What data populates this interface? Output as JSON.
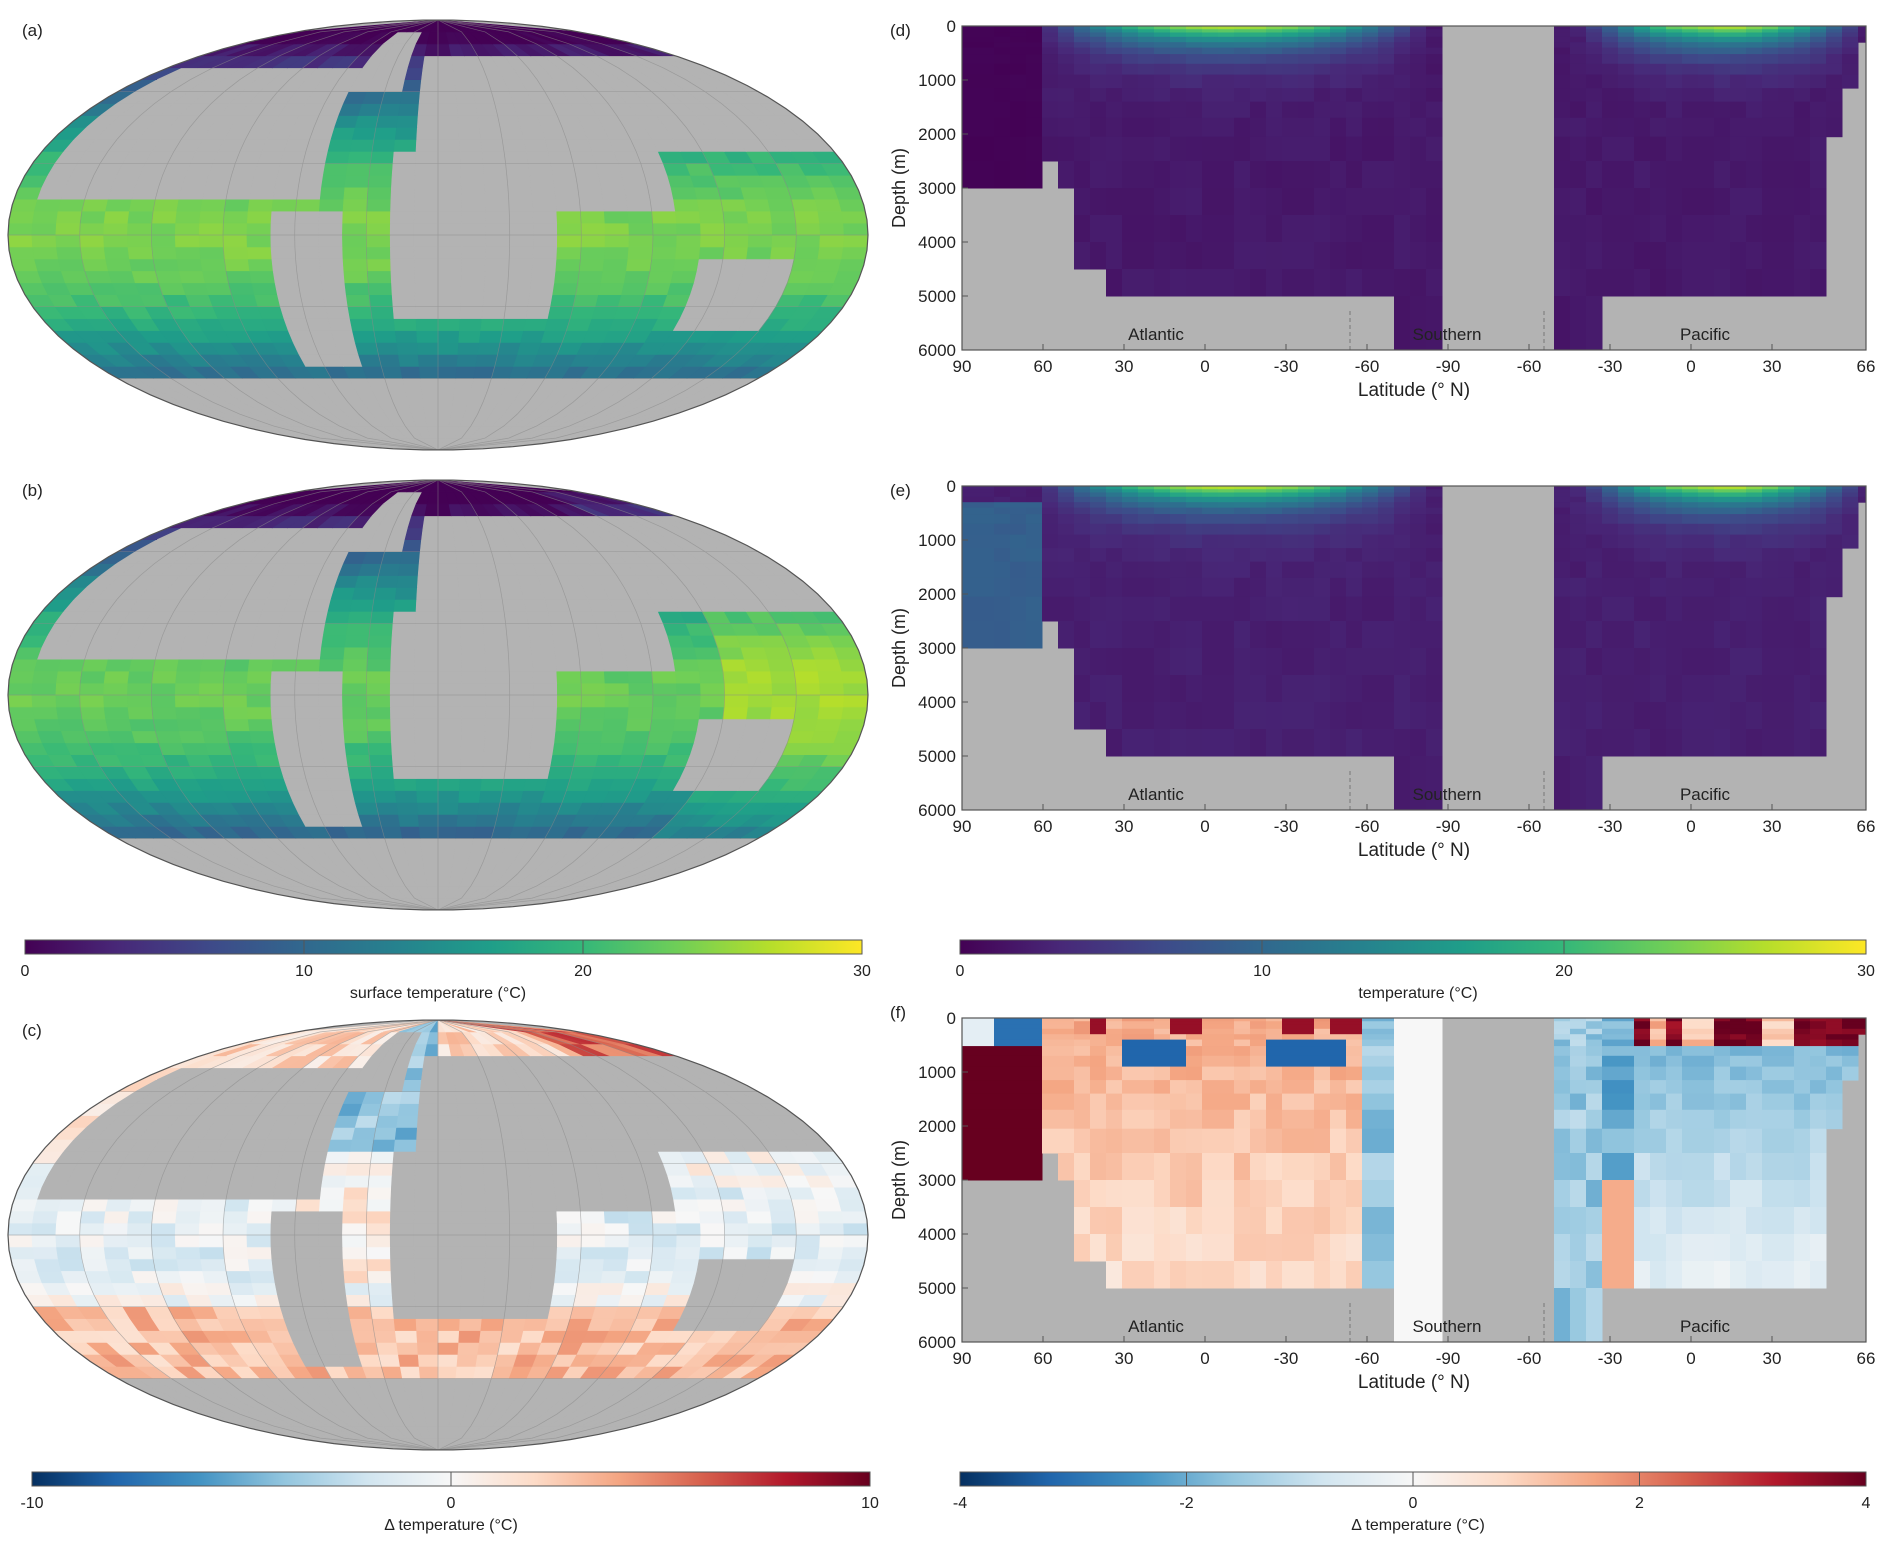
{
  "colors": {
    "land": "#b3b3b3",
    "frame": "#555555",
    "divider": "#777777",
    "viridis": [
      "#440154",
      "#482878",
      "#3e4a89",
      "#31688e",
      "#26828e",
      "#1f9e89",
      "#35b779",
      "#6ece58",
      "#b5de2b",
      "#fde725"
    ],
    "rdbu": [
      "#053061",
      "#2166ac",
      "#4393c3",
      "#92c5de",
      "#d1e5f0",
      "#f7f7f7",
      "#fddbc7",
      "#f4a582",
      "#d6604d",
      "#b2182b",
      "#67001f"
    ]
  },
  "panel_labels": {
    "a": "(a)",
    "b": "(b)",
    "c": "(c)",
    "d": "(d)",
    "e": "(e)",
    "f": "(f)"
  },
  "chart_data": [
    {
      "id": "a",
      "type": "heatmap",
      "subtype": "map",
      "projection": "Robinson",
      "quantity": "surface temperature",
      "units": "°C",
      "range": [
        0,
        30
      ]
    },
    {
      "id": "b",
      "type": "heatmap",
      "subtype": "map",
      "projection": "Robinson",
      "quantity": "surface temperature",
      "units": "°C",
      "range": [
        0,
        30
      ]
    },
    {
      "id": "c",
      "type": "heatmap",
      "subtype": "map",
      "projection": "Robinson",
      "quantity": "Δ temperature",
      "units": "°C",
      "range": [
        -10,
        10
      ]
    },
    {
      "id": "d",
      "type": "heatmap",
      "subtype": "section",
      "quantity": "temperature",
      "units": "°C",
      "range": [
        0,
        30
      ],
      "ylabel": "Depth (m)",
      "xlabel": "Latitude (° N)",
      "yticks": [
        "0",
        "1000",
        "2000",
        "3000",
        "4000",
        "5000",
        "6000"
      ],
      "xticks": [
        "90",
        "60",
        "30",
        "0",
        "-30",
        "-60",
        "-90",
        "-60",
        "-30",
        "0",
        "30",
        "66"
      ],
      "basins": [
        "Atlantic",
        "Southern",
        "Pacific"
      ]
    },
    {
      "id": "e",
      "type": "heatmap",
      "subtype": "section",
      "quantity": "temperature",
      "units": "°C",
      "range": [
        0,
        30
      ],
      "ylabel": "Depth (m)",
      "xlabel": "Latitude (° N)",
      "yticks": [
        "0",
        "1000",
        "2000",
        "3000",
        "4000",
        "5000",
        "6000"
      ],
      "xticks": [
        "90",
        "60",
        "30",
        "0",
        "-30",
        "-60",
        "-90",
        "-60",
        "-30",
        "0",
        "30",
        "66"
      ],
      "basins": [
        "Atlantic",
        "Southern",
        "Pacific"
      ]
    },
    {
      "id": "f",
      "type": "heatmap",
      "subtype": "section",
      "quantity": "Δ temperature",
      "units": "°C",
      "range": [
        -4,
        4
      ],
      "ylabel": "Depth (m)",
      "xlabel": "Latitude (° N)",
      "yticks": [
        "0",
        "1000",
        "2000",
        "3000",
        "4000",
        "5000",
        "6000"
      ],
      "xticks": [
        "90",
        "60",
        "30",
        "0",
        "-30",
        "-60",
        "-90",
        "-60",
        "-30",
        "0",
        "30",
        "66"
      ],
      "basins": [
        "Atlantic",
        "Southern",
        "Pacific"
      ]
    }
  ],
  "colorbars": {
    "map_temp": {
      "label": "surface temperature (°C)",
      "ticks": [
        "0",
        "10",
        "20",
        "30"
      ]
    },
    "map_delta": {
      "label": "Δ temperature (°C)",
      "ticks": [
        "-10",
        "0",
        "10"
      ]
    },
    "section_temp": {
      "label": "temperature (°C)",
      "ticks": [
        "0",
        "10",
        "20",
        "30"
      ]
    },
    "section_delta": {
      "label": "Δ temperature (°C)",
      "ticks": [
        "-4",
        "-2",
        "0",
        "2",
        "4"
      ]
    }
  }
}
